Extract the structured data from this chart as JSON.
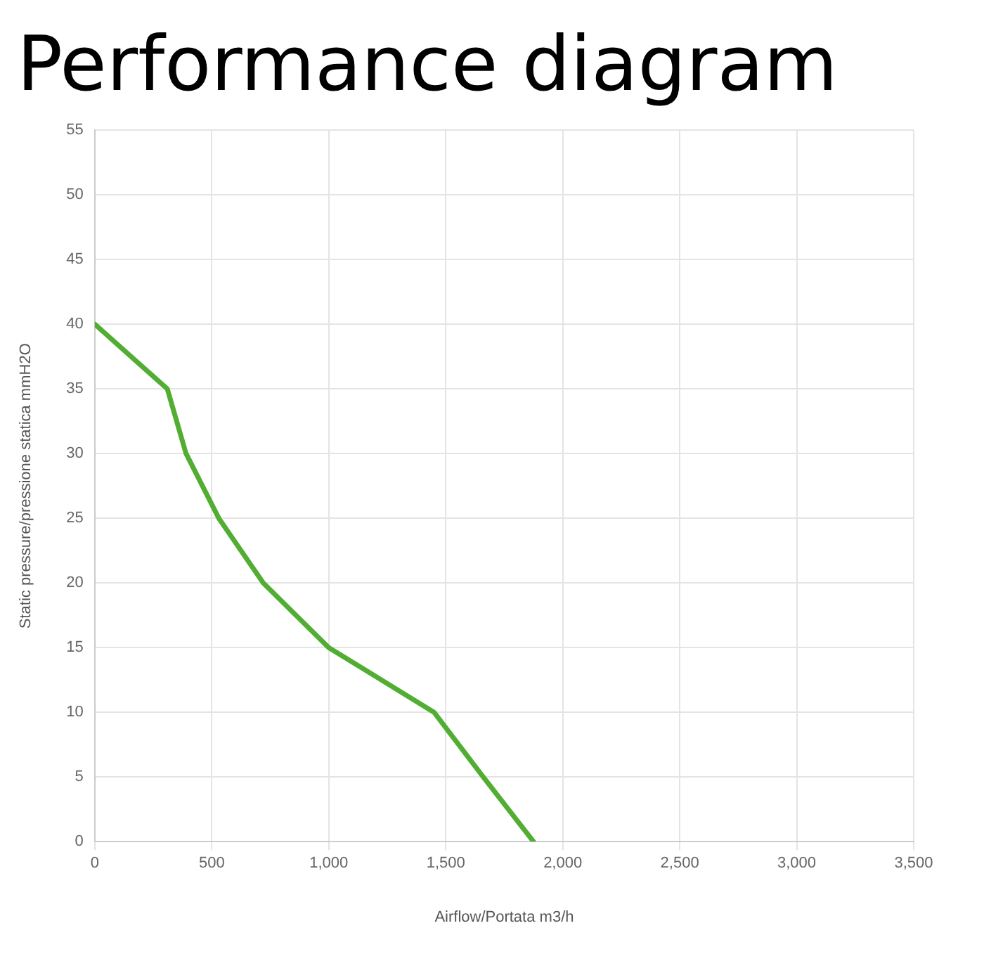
{
  "chart_data": {
    "type": "line",
    "title": "Performance diagram",
    "xlabel": "Airflow/Portata m3/h",
    "ylabel": "Static pressure/pressione statica mmH2O",
    "x": [
      0,
      310,
      390,
      530,
      720,
      1000,
      1450,
      1660,
      1875
    ],
    "series": [
      {
        "color": "#52ae32",
        "values": [
          40,
          35,
          30,
          25,
          20,
          15,
          10,
          5,
          0
        ]
      }
    ],
    "xlim": [
      0,
      3500
    ],
    "xticks": [
      0,
      500,
      {
        "value": 1000,
        "label": "1,000"
      },
      {
        "value": 1500,
        "label": "1,500"
      },
      {
        "value": 2000,
        "label": "2,000"
      },
      {
        "value": 2500,
        "label": "2,500"
      },
      {
        "value": 3000,
        "label": "3,000"
      },
      {
        "value": 3500,
        "label": "3,500"
      }
    ],
    "ylim": [
      0,
      55
    ],
    "yticks": [
      0,
      5,
      10,
      15,
      20,
      25,
      30,
      35,
      40,
      45,
      50,
      55
    ],
    "grid": true,
    "legend": false,
    "marker": "none",
    "line_style": "solid"
  }
}
